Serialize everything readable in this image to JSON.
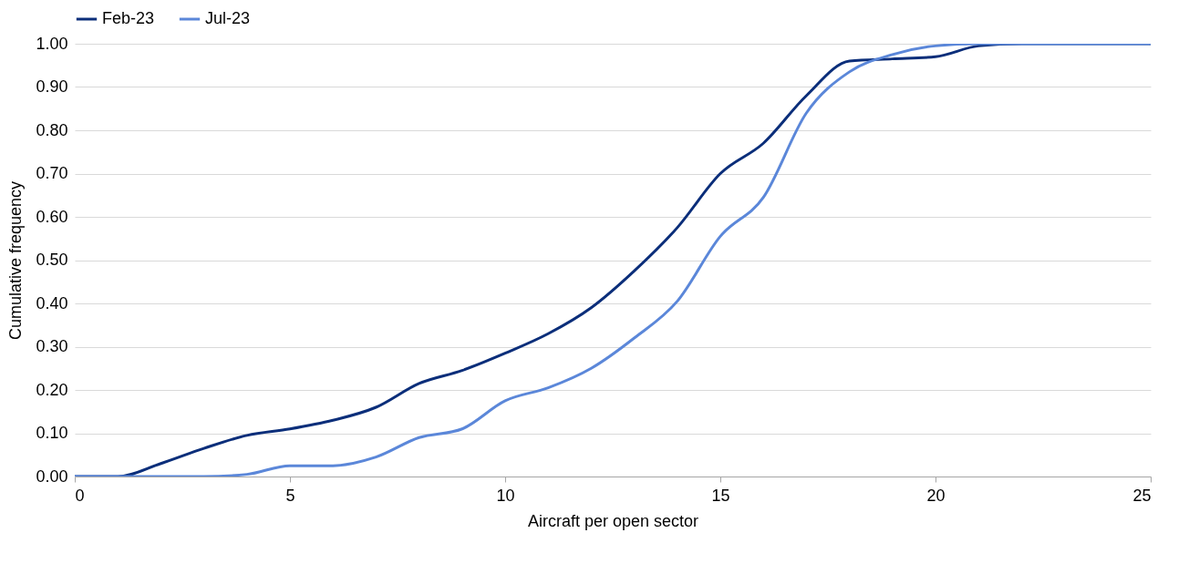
{
  "chart_data": {
    "type": "line",
    "xlabel": "Aircraft per open sector",
    "ylabel": "Cumulative frequency",
    "x": [
      0,
      1,
      2,
      3,
      4,
      5,
      6,
      7,
      8,
      9,
      10,
      11,
      12,
      13,
      14,
      15,
      16,
      17,
      18,
      19,
      20,
      21,
      22,
      23,
      24,
      25
    ],
    "series": [
      {
        "name": "Feb-23",
        "color": "#0b2e7a",
        "values": [
          0,
          0,
          0.03,
          0.065,
          0.095,
          0.11,
          0.13,
          0.16,
          0.215,
          0.245,
          0.285,
          0.33,
          0.39,
          0.475,
          0.575,
          0.7,
          0.77,
          0.88,
          0.96,
          0.965,
          0.97,
          0.995,
          1,
          1,
          1,
          1
        ]
      },
      {
        "name": "Jul-23",
        "color": "#5b87d9",
        "values": [
          0,
          0,
          0,
          0,
          0.005,
          0.025,
          0.025,
          0.045,
          0.09,
          0.11,
          0.175,
          0.205,
          0.25,
          0.32,
          0.405,
          0.555,
          0.645,
          0.84,
          0.935,
          0.975,
          0.995,
          1,
          1,
          1,
          1,
          1
        ]
      }
    ],
    "xlim": [
      0,
      25
    ],
    "xticks": [
      0,
      5,
      10,
      15,
      20,
      25
    ],
    "ylim": [
      0,
      1
    ],
    "yticks": [
      {
        "value": 0,
        "label": "0.00"
      },
      {
        "value": 0.1,
        "label": "0.10"
      },
      {
        "value": 0.2,
        "label": "0.20"
      },
      {
        "value": 0.3,
        "label": "0.30"
      },
      {
        "value": 0.4,
        "label": "0.40"
      },
      {
        "value": 0.5,
        "label": "0.50"
      },
      {
        "value": 0.6,
        "label": "0.60"
      },
      {
        "value": 0.7,
        "label": "0.70"
      },
      {
        "value": 0.8,
        "label": "0.80"
      },
      {
        "value": 0.9,
        "label": "0.90"
      },
      {
        "value": 1,
        "label": "1.00"
      }
    ],
    "grid": "y",
    "legend": "top",
    "marker": "none",
    "line_style": "solid"
  }
}
